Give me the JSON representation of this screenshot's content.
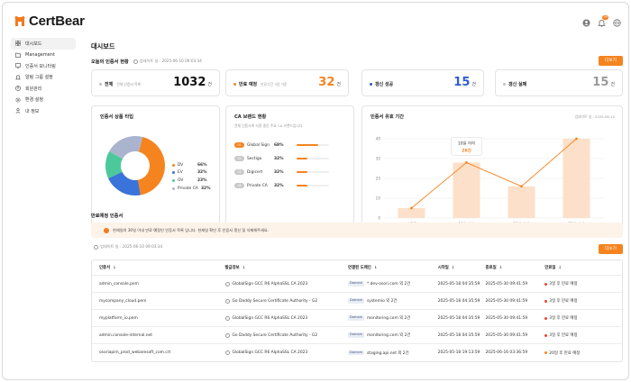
{
  "app": {
    "name": "CertBear",
    "notification_count": "99"
  },
  "sidebar": {
    "items": [
      {
        "label": "대시보드",
        "icon": "grid-icon",
        "active": true
      },
      {
        "label": "Management",
        "icon": "folder-icon"
      },
      {
        "label": "인증서 모니터링",
        "icon": "monitor-icon"
      },
      {
        "label": "알림 그룹 설정",
        "icon": "bell-icon"
      },
      {
        "label": "회원관리",
        "icon": "user-circle-icon"
      },
      {
        "label": "환경 설정",
        "icon": "gear-icon"
      },
      {
        "label": "내 정보",
        "icon": "person-icon"
      }
    ]
  },
  "main": {
    "title": "대시보드",
    "today_title": "오늘의 인증서 현황",
    "updated": "업데이트 일 : 2025-06-10 09:03:34",
    "more_label": "더보기"
  },
  "stats": [
    {
      "label": "전체",
      "sub": "전체 인증서 목록",
      "value": "1032",
      "unit": "건",
      "color": "#bfbfbf",
      "value_color": "#111111"
    },
    {
      "label": "만료 예정",
      "sub": "만료기간 3일 기준",
      "value": "32",
      "unit": "건",
      "color": "#f5841f",
      "value_color": "#f5841f"
    },
    {
      "label": "갱신 성공",
      "sub": "",
      "value": "15",
      "unit": "건",
      "color": "#2f5bd3",
      "value_color": "#2f5bd3"
    },
    {
      "label": "갱신 실패",
      "sub": "",
      "value": "15",
      "unit": "건",
      "color": "#bfbfbf",
      "value_color": "#9a9a9a"
    }
  ],
  "cert_type": {
    "title": "인증서 상품 타입",
    "chart_data": {
      "type": "pie",
      "categories": [
        "DV",
        "EV",
        "OV",
        "Private CA"
      ],
      "values": [
        66,
        32,
        23,
        32
      ],
      "colors": [
        "#f5841f",
        "#3a73d9",
        "#4cc99a",
        "#aab4cf"
      ],
      "labels": [
        "66%",
        "32%",
        "23%",
        "32%"
      ]
    }
  },
  "ca_brand": {
    "title": "CA 브랜드 현황",
    "desc": "전체 인증서에 사용 중인 주요 CA 브랜드입니다.",
    "items": [
      {
        "rank": "01",
        "name": "Global Sign",
        "pct": "68%",
        "value": 68,
        "color": "#f5841f"
      },
      {
        "rank": "02",
        "name": "Sectigo",
        "pct": "32%",
        "value": 32,
        "color": "#c9c9c9"
      },
      {
        "rank": "03",
        "name": "Digicert",
        "pct": "32%",
        "value": 32,
        "color": "#c9c9c9"
      },
      {
        "rank": "04",
        "name": "Private CA",
        "pct": "32%",
        "value": 32,
        "color": "#c9c9c9"
      }
    ]
  },
  "expiry_chart": {
    "title": "인증서 유효 기간",
    "updated": "업데이트 일 : 2025-06-10",
    "tooltip_label": "10일 이하",
    "tooltip_value": "28건",
    "chart_data": {
      "type": "bar",
      "categories": [
        "만료됨",
        "10일 이하",
        "30일 이하",
        "31일 이상"
      ],
      "values": [
        5,
        28,
        16,
        40
      ],
      "yticks": [
        "0",
        "10",
        "20",
        "30",
        "40"
      ],
      "ylim": [
        0,
        40
      ],
      "line_overlay": true
    }
  },
  "expiry": {
    "title": "만료예정 인증서",
    "notice": "현재일의 30일 이내 만료 예정인 인증서 목록 입니다. 현재일 확인 후 인증서 갱신 및 삭제해주세요.",
    "updated": "업데이트 일 : 2025-06-10 09:03:34",
    "more_label": "더보기",
    "columns": [
      "인증서",
      "발급정보",
      "연결된 도메인",
      "시작일",
      "종료일",
      "만료일"
    ],
    "domain_label": "Domain",
    "rows": [
      {
        "cert": "admin_console.pem",
        "issuer": "GlobalSign GCC R6 AlphaSSL CA 2023",
        "domain": "*.dev-osori.com 외 2건",
        "start": "2025-05-18 04:35:59",
        "end": "2025-05-30 09:41:59",
        "expire": "3일 후 만료 예정",
        "expire_color": "#e8452c"
      },
      {
        "cert": "mycompany_cloud.pem",
        "issuer": "Go Daddy Secure Certificate Authority - G2",
        "domain": "systemio 외 2건",
        "start": "2025-05-18 04:35:59",
        "end": "2025-05-30 09:41:59",
        "expire": "3일 후 만료 예정",
        "expire_color": "#e8452c"
      },
      {
        "cert": "myplatform_io.pem",
        "issuer": "GlobalSign GCC R6 AlphaSSL CA 2023",
        "domain": "monitoring.com 외 2건",
        "start": "2025-05-18 04:35:59",
        "end": "2025-05-30 09:41:59",
        "expire": "3일 후 만료 예정",
        "expire_color": "#e8452c"
      },
      {
        "cert": "admin.console-internal.net",
        "issuer": "Go Daddy Secure Certificate Authority - G2",
        "domain": "monitoring.com 외 2건",
        "start": "2025-05-18 04:35:59",
        "end": "2025-05-30 09:41:59",
        "expire": "3일 후 만료 예정",
        "expire_color": "#e8452c"
      },
      {
        "cert": "osoriapim_prod_webaresoft_com.crt",
        "issuer": "GlobalSign GCC R6 AlphaSSL CA 2023",
        "domain": "staging.api.net 외 2건",
        "start": "2025-05-18 19:13:59",
        "end": "2025-06-16 03:36:59",
        "expire": "20일 후 만료 예정",
        "expire_color": "#f5841f"
      }
    ]
  }
}
